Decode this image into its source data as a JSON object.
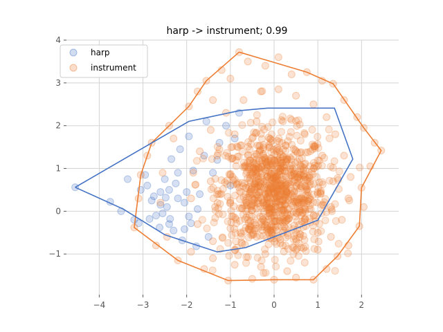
{
  "chart_data": {
    "type": "scatter",
    "title": "harp -> instrument; 0.99",
    "xlabel": "",
    "ylabel": "",
    "xlim": [
      -4.75,
      2.85
    ],
    "ylim": [
      -1.95,
      4.0
    ],
    "xticks": [
      -4,
      -3,
      -2,
      -1,
      0,
      1,
      2
    ],
    "xtick_labels": [
      "−4",
      "−3",
      "−2",
      "−1",
      "0",
      "1",
      "2"
    ],
    "yticks": [
      -1,
      0,
      1,
      2,
      3,
      4
    ],
    "ytick_labels": [
      "−1",
      "0",
      "1",
      "2",
      "3",
      "4"
    ],
    "grid": true,
    "legend_position": "top-left",
    "series": [
      {
        "name": "harp",
        "color": "#4472c4",
        "hull": [
          [
            -4.55,
            0.56
          ],
          [
            -1.95,
            2.1
          ],
          [
            -0.8,
            2.35
          ],
          [
            -0.15,
            2.41
          ],
          [
            1.38,
            2.41
          ],
          [
            1.8,
            1.22
          ],
          [
            1.0,
            -0.21
          ],
          [
            -0.65,
            -0.85
          ],
          [
            -1.3,
            -0.95
          ],
          [
            -2.5,
            -0.55
          ],
          [
            -3.45,
            0.05
          ],
          [
            -4.55,
            0.56
          ]
        ],
        "points": [
          [
            -4.55,
            0.56
          ],
          [
            -3.35,
            0.75
          ],
          [
            -3.75,
            0.22
          ],
          [
            -3.5,
            0.0
          ],
          [
            -3.2,
            -0.2
          ],
          [
            -3.05,
            0.5
          ],
          [
            -2.95,
            0.85
          ],
          [
            -2.8,
            0.25
          ],
          [
            -2.7,
            -0.1
          ],
          [
            -2.6,
            0.45
          ],
          [
            -2.5,
            0.75
          ],
          [
            -2.4,
            -0.3
          ],
          [
            -2.35,
            1.22
          ],
          [
            -2.2,
            0.3
          ],
          [
            -2.15,
            1.45
          ],
          [
            -2.05,
            0.2
          ],
          [
            -1.95,
            1.75
          ],
          [
            -1.85,
            0.95
          ],
          [
            -1.75,
            0.05
          ],
          [
            -1.6,
            1.3
          ],
          [
            -1.5,
            -0.6
          ],
          [
            -2.45,
            0.1
          ],
          [
            -2.3,
            -0.45
          ],
          [
            -2.9,
            0.6
          ],
          [
            -2.62,
            -0.38
          ],
          [
            -2.1,
            -0.68
          ],
          [
            -1.78,
            -0.82
          ],
          [
            -2.55,
            -0.05
          ],
          [
            -2.75,
            0.35
          ],
          [
            -2.25,
            0.65
          ],
          [
            -2.0,
            0.45
          ],
          [
            -1.9,
            -0.28
          ],
          [
            -2.48,
            0.32
          ],
          [
            -3.1,
            -0.28
          ],
          [
            -2.38,
            -0.18
          ],
          [
            -2.05,
            -0.42
          ],
          [
            -1.7,
            0.4
          ],
          [
            -1.4,
            0.9
          ],
          [
            -1.25,
            1.6
          ],
          [
            -1.1,
            2.0
          ],
          [
            -0.9,
            1.7
          ],
          [
            -0.8,
            2.3
          ],
          [
            -1.55,
            2.1
          ],
          [
            -1.3,
            1.2
          ],
          [
            -1.0,
            0.6
          ],
          [
            -2.2,
            0.9
          ],
          [
            -2.6,
            0.15
          ],
          [
            -2.85,
            -0.18
          ],
          [
            -2.4,
            0.5
          ],
          [
            -1.95,
            -0.12
          ]
        ]
      },
      {
        "name": "instrument",
        "color": "#ed7d31",
        "hull": [
          [
            -0.8,
            3.72
          ],
          [
            0.75,
            3.25
          ],
          [
            1.35,
            2.98
          ],
          [
            2.05,
            1.95
          ],
          [
            2.45,
            1.42
          ],
          [
            2.0,
            0.55
          ],
          [
            1.95,
            -0.35
          ],
          [
            1.45,
            -1.05
          ],
          [
            0.9,
            -1.6
          ],
          [
            0.0,
            -1.6
          ],
          [
            -1.05,
            -1.62
          ],
          [
            -2.2,
            -1.15
          ],
          [
            -3.2,
            -0.38
          ],
          [
            -3.05,
            0.85
          ],
          [
            -2.8,
            1.6
          ],
          [
            -1.95,
            2.45
          ],
          [
            -1.55,
            3.05
          ],
          [
            -0.8,
            3.72
          ]
        ],
        "points": [
          [
            -0.8,
            3.72
          ],
          [
            -0.6,
            3.5
          ],
          [
            -0.2,
            3.4
          ],
          [
            0.1,
            3.6
          ],
          [
            0.4,
            3.2
          ],
          [
            0.75,
            3.25
          ],
          [
            1.1,
            3.05
          ],
          [
            1.35,
            2.98
          ],
          [
            1.6,
            2.6
          ],
          [
            1.9,
            2.2
          ],
          [
            2.05,
            1.95
          ],
          [
            2.3,
            1.6
          ],
          [
            2.45,
            1.42
          ],
          [
            2.2,
            1.05
          ],
          [
            2.0,
            0.55
          ],
          [
            2.05,
            0.1
          ],
          [
            1.95,
            -0.35
          ],
          [
            1.7,
            -0.8
          ],
          [
            1.45,
            -1.05
          ],
          [
            1.2,
            -1.35
          ],
          [
            0.9,
            -1.6
          ],
          [
            0.5,
            -1.55
          ],
          [
            0.0,
            -1.6
          ],
          [
            -0.5,
            -1.58
          ],
          [
            -1.05,
            -1.62
          ],
          [
            -1.6,
            -1.35
          ],
          [
            -2.2,
            -1.15
          ],
          [
            -2.7,
            -0.8
          ],
          [
            -3.2,
            -0.38
          ],
          [
            -3.1,
            0.3
          ],
          [
            -3.05,
            0.85
          ],
          [
            -2.9,
            1.3
          ],
          [
            -2.8,
            1.6
          ],
          [
            -2.4,
            2.0
          ],
          [
            -1.95,
            2.45
          ],
          [
            -1.75,
            2.8
          ],
          [
            -1.55,
            3.05
          ],
          [
            -1.2,
            3.3
          ],
          [
            -1.0,
            3.1
          ],
          [
            -1.4,
            2.6
          ],
          [
            -2.3,
            1.7
          ],
          [
            -2.55,
            0.9
          ],
          [
            -2.6,
            0.2
          ],
          [
            -2.45,
            -0.6
          ],
          [
            -1.9,
            -0.95
          ],
          [
            -1.4,
            -1.1
          ],
          [
            -0.9,
            -1.25
          ],
          [
            -0.3,
            -1.3
          ],
          [
            0.3,
            -1.4
          ],
          [
            0.7,
            -1.2
          ],
          [
            1.0,
            -0.9
          ],
          [
            1.3,
            -0.6
          ],
          [
            1.55,
            -0.2
          ],
          [
            1.7,
            0.3
          ],
          [
            1.75,
            0.8
          ],
          [
            1.6,
            1.3
          ],
          [
            1.4,
            1.8
          ],
          [
            1.2,
            2.2
          ],
          [
            0.9,
            2.5
          ],
          [
            0.5,
            2.7
          ],
          [
            0.1,
            2.85
          ],
          [
            -0.3,
            2.8
          ],
          [
            -0.7,
            2.6
          ],
          [
            -1.1,
            2.3
          ],
          [
            -1.45,
            1.9
          ],
          [
            -1.7,
            1.4
          ],
          [
            -1.85,
            0.9
          ],
          [
            -1.9,
            0.3
          ],
          [
            -1.75,
            -0.3
          ],
          [
            -1.4,
            -0.7
          ],
          [
            -0.9,
            -0.9
          ],
          [
            -0.2,
            -1.0
          ],
          [
            0.5,
            -0.9
          ],
          [
            1.0,
            -0.5
          ],
          [
            1.3,
            0.1
          ],
          [
            1.35,
            0.7
          ],
          [
            1.1,
            1.3
          ],
          [
            0.7,
            1.8
          ],
          [
            0.2,
            2.1
          ],
          [
            -0.4,
            2.1
          ],
          [
            -0.9,
            1.8
          ],
          [
            -1.3,
            1.3
          ],
          [
            -1.45,
            0.7
          ],
          [
            -1.35,
            0.1
          ],
          [
            -1.0,
            -0.4
          ],
          [
            -0.4,
            -0.6
          ],
          [
            0.2,
            -0.5
          ],
          [
            0.7,
            -0.2
          ],
          [
            1.0,
            0.4
          ],
          [
            0.9,
            1.0
          ],
          [
            0.5,
            1.4
          ],
          [
            -0.1,
            1.5
          ],
          [
            -0.6,
            1.3
          ],
          [
            -0.95,
            0.8
          ],
          [
            -1.0,
            0.2
          ],
          [
            -0.6,
            -0.2
          ],
          [
            0.0,
            -0.1
          ],
          [
            0.5,
            0.2
          ],
          [
            0.55,
            0.8
          ],
          [
            0.1,
            1.0
          ],
          [
            -0.4,
            0.8
          ],
          [
            -0.5,
            0.3
          ],
          [
            0.0,
            0.4
          ]
        ]
      }
    ]
  }
}
